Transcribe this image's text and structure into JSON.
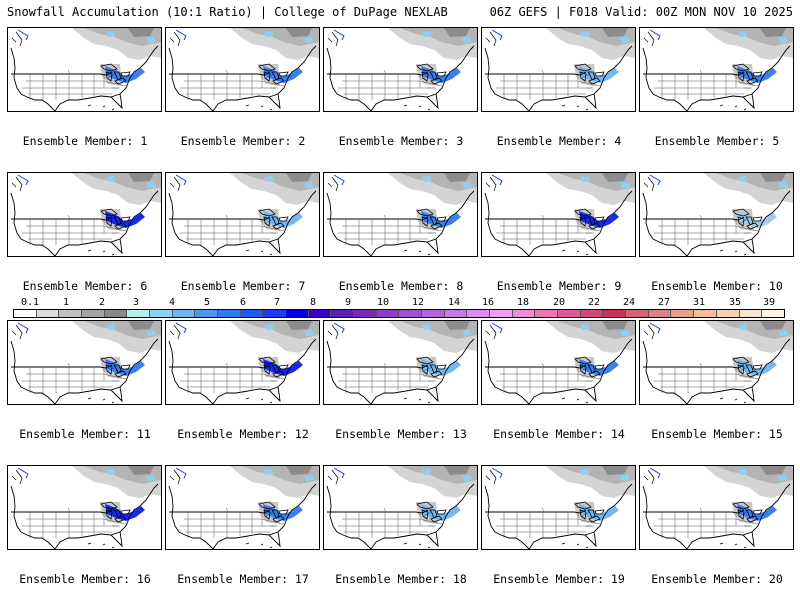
{
  "header": {
    "title": "Snowfall Accumulation (10:1 Ratio) | College of DuPage NEXLAB",
    "info": "06Z GEFS | F018 Valid: 00Z MON NOV 10 2025"
  },
  "caption_prefix": "Ensemble Member: ",
  "members": [
    "1",
    "2",
    "3",
    "4",
    "5",
    "6",
    "7",
    "8",
    "9",
    "10",
    "11",
    "12",
    "13",
    "14",
    "15",
    "16",
    "17",
    "18",
    "19",
    "20"
  ],
  "band_intensity": [
    2,
    2,
    2,
    1,
    2,
    3,
    1,
    2,
    3,
    0,
    2,
    3,
    1,
    2,
    1,
    3,
    2,
    1,
    1,
    2
  ],
  "colorbar": {
    "labels": [
      "0.1",
      "1",
      "2",
      "3",
      "4",
      "5",
      "6",
      "7",
      "8",
      "9",
      "10",
      "12",
      "14",
      "16",
      "18",
      "20",
      "22",
      "24",
      "27",
      "31",
      "35",
      "39"
    ],
    "colors": [
      "#ffffff",
      "#dcdcdc",
      "#c0c0c0",
      "#a4a4a4",
      "#888888",
      "#b4f0f0",
      "#8ad2f0",
      "#6eb4f0",
      "#5096f0",
      "#3278f0",
      "#1e5af0",
      "#1e3cf0",
      "#0000e6",
      "#3c00c8",
      "#5a1eb4",
      "#7828b4",
      "#8c3cc8",
      "#a050c8",
      "#b464dc",
      "#c878e6",
      "#dc8cf0",
      "#f0a0f0",
      "#f08cd2",
      "#e678b4",
      "#dc5a96",
      "#d24678",
      "#c8325a",
      "#d2646e",
      "#dc8282",
      "#e6a08c",
      "#f0be9b",
      "#f5d2b4",
      "#fae6d2",
      "#fff5e6"
    ]
  }
}
